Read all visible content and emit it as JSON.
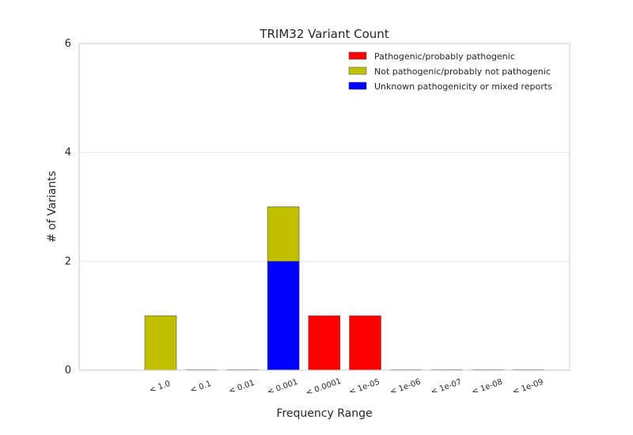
{
  "chart_data": {
    "type": "bar",
    "stacked": true,
    "title": "TRIM32 Variant Count",
    "xlabel": "Frequency Range",
    "ylabel": "# of Variants",
    "ylim": [
      0,
      6
    ],
    "yticks": [
      0,
      2,
      4,
      6
    ],
    "grid": true,
    "legend_position": "top-right",
    "categories": [
      "< 1.0",
      "< 0.1",
      "< 0.01",
      "< 0.001",
      "< 0.0001",
      "< 1e-05",
      "< 1e-06",
      "< 1e-07",
      "< 1e-08",
      "< 1e-09"
    ],
    "series": [
      {
        "name": "Pathogenic/probably pathogenic",
        "color": "#ff0000",
        "values": [
          0,
          0,
          0,
          0,
          1,
          1,
          0,
          0,
          0,
          0
        ]
      },
      {
        "name": "Not pathogenic/probably not pathogenic",
        "color": "#bfbf00",
        "values": [
          1,
          0,
          0,
          1,
          0,
          0,
          0,
          0,
          0,
          0
        ]
      },
      {
        "name": "Unknown pathogenicity or mixed reports",
        "color": "#0000ff",
        "values": [
          0,
          0,
          0,
          2,
          0,
          0,
          0,
          0,
          0,
          0
        ]
      }
    ],
    "stack_order": [
      2,
      1,
      0
    ]
  }
}
